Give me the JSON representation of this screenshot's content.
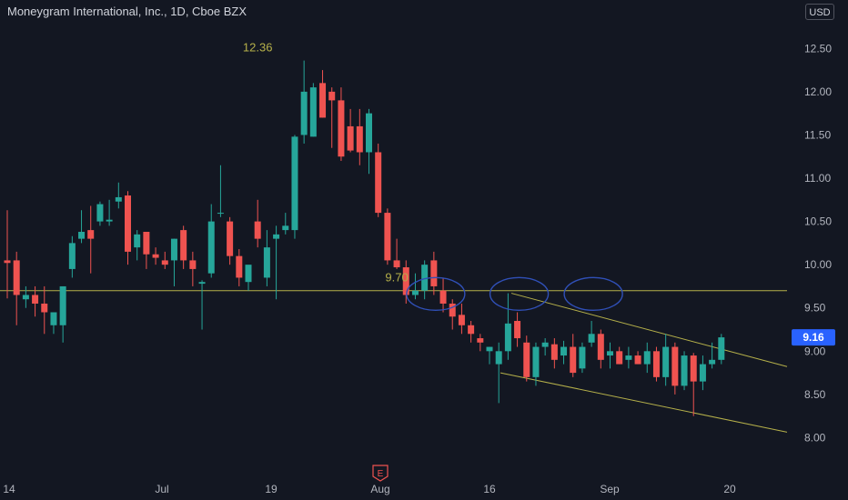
{
  "header": {
    "title": "Moneygram International, Inc., 1D, Cboe BZX",
    "currency_button": "USD"
  },
  "chart_data": {
    "type": "candlestick",
    "ylim": [
      7.7,
      12.85
    ],
    "y_ticks": [
      "12.50",
      "12.00",
      "11.50",
      "11.00",
      "10.50",
      "10.00",
      "9.50",
      "9.00",
      "8.50",
      "8.00"
    ],
    "x_ticks": [
      {
        "label": "14",
        "index": 0
      },
      {
        "label": "Jul",
        "index": 14
      },
      {
        "label": "19",
        "index": 24
      },
      {
        "label": "Aug",
        "index": 34
      },
      {
        "label": "16",
        "index": 44
      },
      {
        "label": "Sep",
        "index": 55
      },
      {
        "label": "20",
        "index": 66
      }
    ],
    "current_price": "9.16",
    "annotations": [
      {
        "text": "12.36",
        "index": 27,
        "value": 12.36
      },
      {
        "text": "9.70",
        "index": 42,
        "value": 9.7
      }
    ],
    "support_line": 9.7,
    "channel": {
      "upper": [
        [
          46,
          9.67
        ],
        [
          71,
          8.83
        ]
      ],
      "lower": [
        [
          45,
          8.75
        ],
        [
          71,
          8.07
        ]
      ]
    },
    "colors": {
      "up": "#26a69a",
      "down": "#ef5350",
      "price_badge": "#2962ff",
      "lines": "#b5b04a",
      "ellipse": "#3050b8"
    },
    "candles": [
      {
        "o": 10.05,
        "h": 10.63,
        "l": 9.61,
        "c": 10.02
      },
      {
        "o": 10.05,
        "h": 10.15,
        "l": 9.3,
        "c": 9.65
      },
      {
        "o": 9.6,
        "h": 9.75,
        "l": 9.5,
        "c": 9.65
      },
      {
        "o": 9.65,
        "h": 9.75,
        "l": 9.4,
        "c": 9.55
      },
      {
        "o": 9.55,
        "h": 9.75,
        "l": 9.2,
        "c": 9.45
      },
      {
        "o": 9.3,
        "h": 9.45,
        "l": 9.2,
        "c": 9.45
      },
      {
        "o": 9.3,
        "h": 9.75,
        "l": 9.1,
        "c": 9.75
      },
      {
        "o": 9.95,
        "h": 10.33,
        "l": 9.85,
        "c": 10.25
      },
      {
        "o": 10.3,
        "h": 10.63,
        "l": 10.25,
        "c": 10.38
      },
      {
        "o": 10.4,
        "h": 10.68,
        "l": 9.9,
        "c": 10.3
      },
      {
        "o": 10.5,
        "h": 10.73,
        "l": 10.45,
        "c": 10.7
      },
      {
        "o": 10.5,
        "h": 10.75,
        "l": 10.45,
        "c": 10.52
      },
      {
        "o": 10.73,
        "h": 10.95,
        "l": 10.65,
        "c": 10.78
      },
      {
        "o": 10.8,
        "h": 10.85,
        "l": 10.0,
        "c": 10.15
      },
      {
        "o": 10.2,
        "h": 10.4,
        "l": 10.05,
        "c": 10.35
      },
      {
        "o": 10.38,
        "h": 10.38,
        "l": 9.95,
        "c": 10.12
      },
      {
        "o": 10.12,
        "h": 10.2,
        "l": 10.0,
        "c": 10.08
      },
      {
        "o": 10.05,
        "h": 10.15,
        "l": 9.95,
        "c": 10.0
      },
      {
        "o": 10.05,
        "h": 10.3,
        "l": 9.75,
        "c": 10.3
      },
      {
        "o": 10.4,
        "h": 10.45,
        "l": 9.95,
        "c": 10.05
      },
      {
        "o": 10.05,
        "h": 10.15,
        "l": 9.75,
        "c": 9.95
      },
      {
        "o": 9.78,
        "h": 9.82,
        "l": 9.25,
        "c": 9.8
      },
      {
        "o": 9.9,
        "h": 10.7,
        "l": 9.85,
        "c": 10.5
      },
      {
        "o": 10.6,
        "h": 11.15,
        "l": 10.55,
        "c": 10.6
      },
      {
        "o": 10.5,
        "h": 10.55,
        "l": 10.0,
        "c": 10.1
      },
      {
        "o": 10.1,
        "h": 10.18,
        "l": 9.75,
        "c": 9.85
      },
      {
        "o": 9.8,
        "h": 9.95,
        "l": 9.7,
        "c": 10.0
      },
      {
        "o": 10.5,
        "h": 10.75,
        "l": 10.2,
        "c": 10.3
      },
      {
        "o": 9.85,
        "h": 10.4,
        "l": 9.75,
        "c": 10.2
      },
      {
        "o": 10.3,
        "h": 10.45,
        "l": 9.6,
        "c": 10.35
      },
      {
        "o": 10.4,
        "h": 10.6,
        "l": 10.35,
        "c": 10.45
      },
      {
        "o": 10.4,
        "h": 11.5,
        "l": 10.3,
        "c": 11.48
      },
      {
        "o": 11.5,
        "h": 12.36,
        "l": 11.4,
        "c": 12.0
      },
      {
        "o": 11.48,
        "h": 12.1,
        "l": 11.48,
        "c": 12.05
      },
      {
        "o": 12.1,
        "h": 12.25,
        "l": 11.7,
        "c": 11.7
      },
      {
        "o": 12.0,
        "h": 12.05,
        "l": 11.35,
        "c": 11.9
      },
      {
        "o": 11.9,
        "h": 12.05,
        "l": 11.2,
        "c": 11.25
      },
      {
        "o": 11.6,
        "h": 11.8,
        "l": 11.3,
        "c": 11.32
      },
      {
        "o": 11.6,
        "h": 11.8,
        "l": 11.15,
        "c": 11.3
      },
      {
        "o": 11.3,
        "h": 11.8,
        "l": 11.05,
        "c": 11.75
      }
    ]
  }
}
